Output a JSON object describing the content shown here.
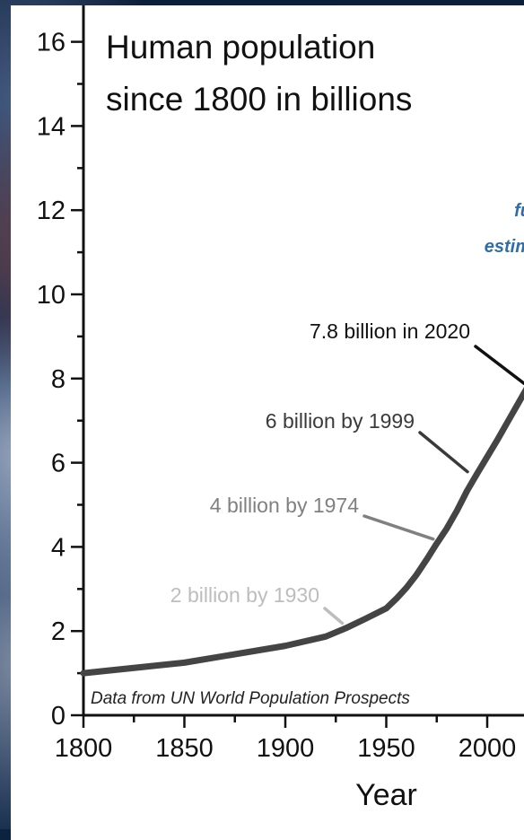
{
  "chart_data": {
    "type": "line",
    "title": "Human population\nsince 1800 in billions",
    "title_lines": [
      "Human population",
      "since 1800 in billions"
    ],
    "xlabel": "Year",
    "ylabel": "",
    "xlim": [
      1800,
      2020
    ],
    "ylim": [
      0,
      16
    ],
    "x_ticks": [
      1800,
      1850,
      1900,
      1950,
      2000
    ],
    "y_ticks": [
      0,
      2,
      4,
      6,
      8,
      10,
      12,
      14,
      16
    ],
    "series": [
      {
        "x": [
          1800,
          1850,
          1900,
          1920,
          1930,
          1940,
          1950,
          1955,
          1960,
          1965,
          1970,
          1975,
          1980,
          1985,
          1990,
          1995,
          2000,
          2005,
          2010,
          2015,
          2020
        ],
        "values": [
          1.0,
          1.25,
          1.65,
          1.87,
          2.07,
          2.3,
          2.54,
          2.77,
          3.03,
          3.34,
          3.7,
          4.08,
          4.44,
          4.86,
          5.33,
          5.74,
          6.14,
          6.54,
          6.96,
          7.38,
          7.8
        ],
        "color": "#444444"
      }
    ],
    "annotations": [
      {
        "text": "7.8 billion in 2020",
        "x": 2020,
        "y": 7.8,
        "color": "#111111"
      },
      {
        "text": "6 billion by 1999",
        "x": 1992,
        "y": 5.7,
        "color": "#3a3a3a"
      },
      {
        "text": "4 billion by 1974",
        "x": 1975,
        "y": 4.1,
        "color": "#808080"
      },
      {
        "text": "2 billion by 1930",
        "x": 1930,
        "y": 2.1,
        "color": "#bdbdbd"
      }
    ],
    "projection_label": [
      "fu",
      "estim"
    ],
    "source_note": "Data from UN World Population Prospects",
    "grid": false,
    "legend": "none"
  }
}
